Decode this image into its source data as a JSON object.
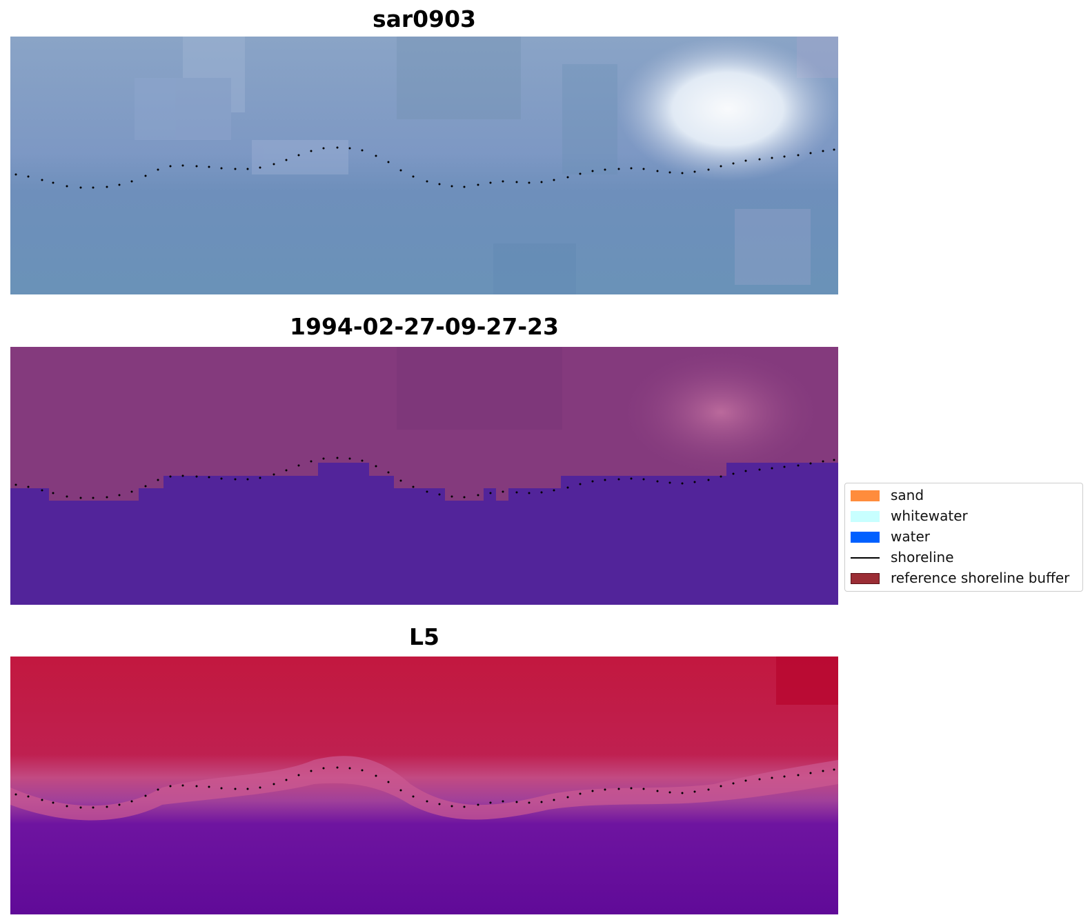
{
  "panels": [
    {
      "title": "sar0903",
      "style": "rgb"
    },
    {
      "title": "1994-02-27-09-27-23",
      "style": "classified"
    },
    {
      "title": "L5",
      "style": "index"
    }
  ],
  "legend": {
    "items": [
      {
        "label": "sand",
        "color": "#ff8c3c",
        "kind": "patch"
      },
      {
        "label": "whitewater",
        "color": "#c8ffff",
        "kind": "patch"
      },
      {
        "label": "water",
        "color": "#0060ff",
        "kind": "patch"
      },
      {
        "label": "shoreline",
        "color": "#000000",
        "kind": "line"
      },
      {
        "label": "reference shoreline buffer",
        "color": "#9b2d35",
        "kind": "patch"
      }
    ]
  },
  "colors": {
    "sar_base": "#7c9cc0",
    "classified_land": "#843a7d",
    "classified_water": "#52249a",
    "index_high": "#bf1540",
    "index_low": "#5e0a9a"
  }
}
